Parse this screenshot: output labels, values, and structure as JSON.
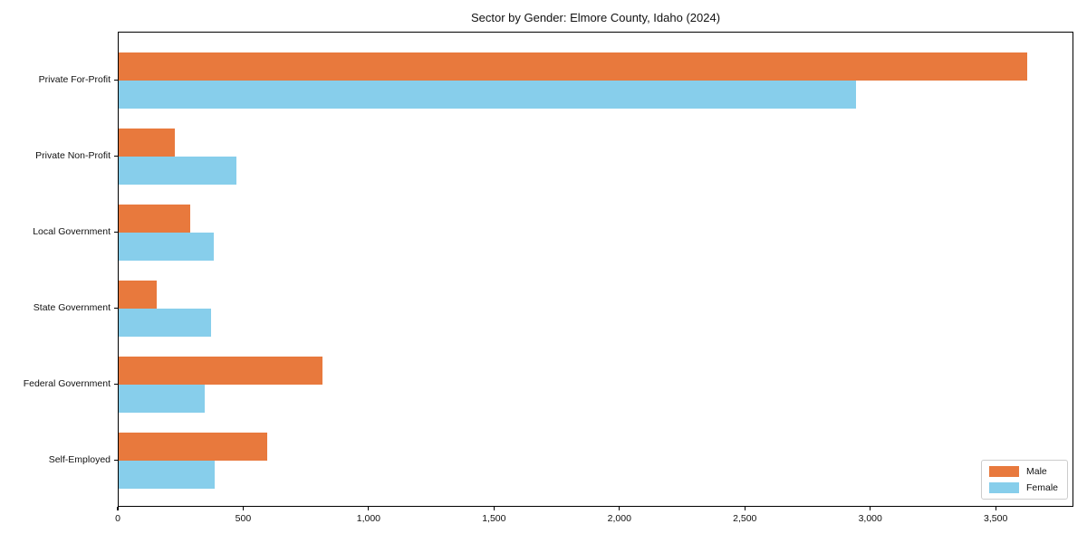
{
  "chart_data": {
    "type": "bar",
    "orientation": "horizontal",
    "title": "Sector by Gender: Elmore County, Idaho (2024)",
    "categories": [
      "Private For-Profit",
      "Private Non-Profit",
      "Local Government",
      "State Government",
      "Federal Government",
      "Self-Employed"
    ],
    "series": [
      {
        "name": "Male",
        "color": "#E8793D",
        "values": [
          3627,
          229,
          289,
          154,
          815,
          595
        ]
      },
      {
        "name": "Female",
        "color": "#87CEEB",
        "values": [
          2943,
          472,
          382,
          373,
          346,
          388
        ]
      }
    ],
    "xlim": [
      0,
      3810
    ],
    "xticks": [
      0,
      500,
      1000,
      1500,
      2000,
      2500,
      3000,
      3500
    ],
    "xtick_labels": [
      "0",
      "500",
      "1,000",
      "1,500",
      "2,000",
      "2,500",
      "3,000",
      "3,500"
    ],
    "xlabel": "",
    "ylabel": "",
    "grid": false,
    "legend_position": "lower right"
  }
}
